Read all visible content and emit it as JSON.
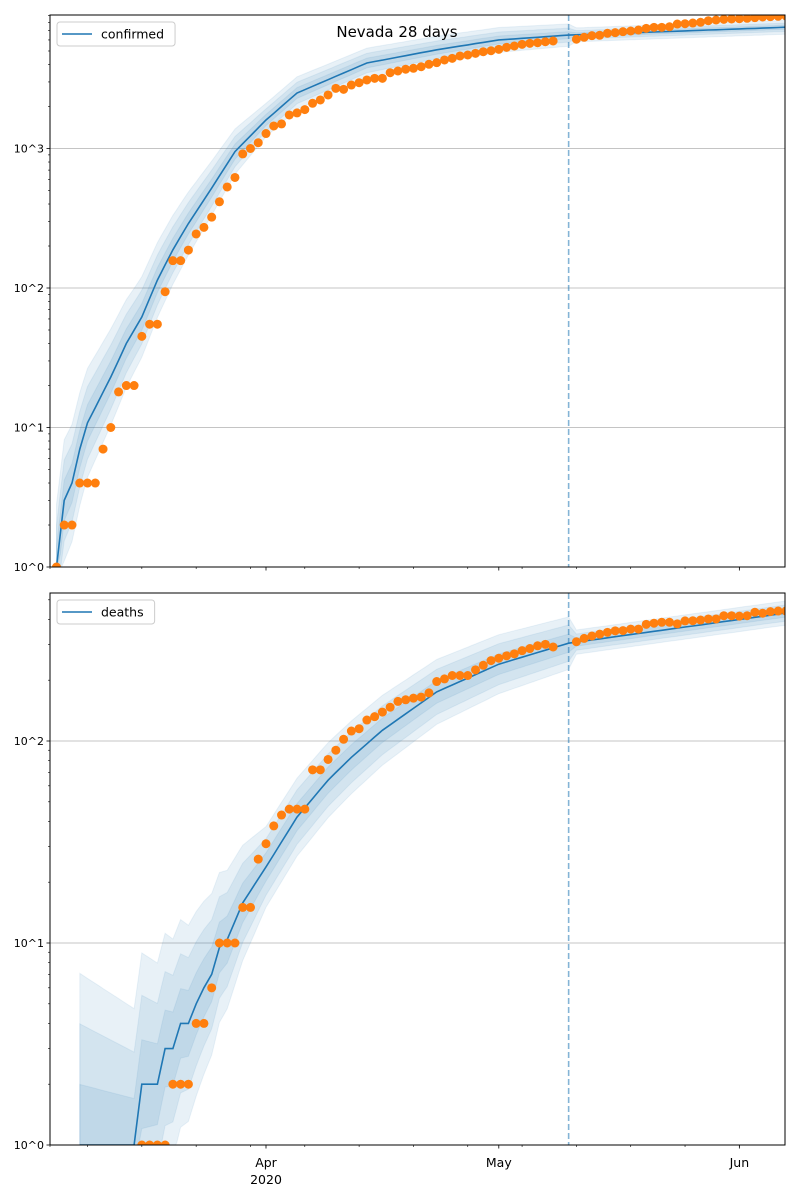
{
  "chart_data": [
    {
      "type": "line",
      "panel": "top",
      "title": "Nevada 28 days",
      "yscale": "log",
      "ylim": [
        1,
        9100
      ],
      "xlim": [
        "2020-03-04",
        "2020-06-07"
      ],
      "y_ticks": [
        "10^0",
        "10^1",
        "10^2",
        "10^3"
      ],
      "x_ticks": [
        {
          "date": "2020-04-01",
          "label": "Apr",
          "sublabel": "2020"
        },
        {
          "date": "2020-05-01",
          "label": "May"
        },
        {
          "date": "2020-06-01",
          "label": "Jun"
        }
      ],
      "show_x_labels": false,
      "grid": "y-major",
      "legend": {
        "placement": "top-left",
        "entries": [
          "confirmed"
        ]
      },
      "forecast_split_date": "2020-05-10",
      "observed": {
        "start": "2020-03-05",
        "values": [
          1,
          2,
          2,
          4,
          4,
          4,
          7,
          10,
          18,
          20,
          20,
          45,
          55,
          55,
          94,
          157,
          157,
          187,
          244,
          272,
          322,
          415,
          530,
          620,
          915,
          1000,
          1100,
          1280,
          1450,
          1500,
          1740,
          1800,
          1900,
          2110,
          2228,
          2420,
          2700,
          2656,
          2850,
          2963,
          3100,
          3185,
          3185,
          3494,
          3594,
          3700,
          3758,
          3857,
          4015,
          4124,
          4310,
          4431,
          4605,
          4680,
          4810,
          4940,
          5020,
          5140,
          5310,
          5430,
          5580,
          5675,
          5730,
          5830,
          5900,
          null,
          null,
          6070,
          6270,
          6440,
          6480,
          6700,
          6765,
          6880,
          6955,
          7070,
          7270,
          7390,
          7390,
          7460,
          7800,
          7840,
          7935,
          8030,
          8240,
          8340,
          8430,
          8480,
          8520,
          8580,
          8670,
          8770,
          8810,
          8870,
          8910
        ]
      },
      "model": [
        [
          "2020-03-05",
          1
        ],
        [
          "2020-03-06",
          3
        ],
        [
          "2020-03-07",
          4
        ],
        [
          "2020-03-08",
          7
        ],
        [
          "2020-03-09",
          10.8
        ],
        [
          "2020-03-12",
          23
        ],
        [
          "2020-03-14",
          40
        ],
        [
          "2020-03-16",
          62
        ],
        [
          "2020-03-18",
          114
        ],
        [
          "2020-03-20",
          188
        ],
        [
          "2020-03-22",
          290
        ],
        [
          "2020-03-25",
          520
        ],
        [
          "2020-03-28",
          950
        ],
        [
          "2020-04-01",
          1600
        ],
        [
          "2020-04-05",
          2500
        ],
        [
          "2020-04-14",
          4100
        ],
        [
          "2020-04-23",
          5100
        ],
        [
          "2020-05-01",
          6000
        ],
        [
          "2020-05-10",
          6500
        ],
        [
          "2020-06-07",
          7400
        ]
      ],
      "uncertainty_halfwidth_decades": {
        "dates": [
          "2020-03-05",
          "2020-03-15",
          "2020-04-01",
          "2020-05-10",
          "2020-05-11",
          "2020-06-07"
        ],
        "levels": [
          [
            0.45,
            0.3,
            0.15
          ],
          [
            0.3,
            0.2,
            0.1
          ],
          [
            0.12,
            0.08,
            0.04
          ],
          [
            0.08,
            0.05,
            0.025
          ],
          [
            0.05,
            0.03,
            0.015
          ],
          [
            0.05,
            0.03,
            0.015
          ]
        ]
      }
    },
    {
      "type": "line",
      "panel": "bottom",
      "yscale": "log",
      "ylim": [
        1,
        541
      ],
      "xlim": [
        "2020-03-04",
        "2020-06-07"
      ],
      "y_ticks": [
        "10^0",
        "10^1",
        "10^2"
      ],
      "x_ticks": [
        {
          "date": "2020-04-01",
          "label": "Apr",
          "sublabel": "2020"
        },
        {
          "date": "2020-05-01",
          "label": "May"
        },
        {
          "date": "2020-06-01",
          "label": "Jun"
        }
      ],
      "show_x_labels": true,
      "grid": "y-major",
      "legend": {
        "placement": "top-left",
        "entries": [
          "deaths"
        ]
      },
      "forecast_split_date": "2020-05-10",
      "observed": {
        "start": "2020-03-16",
        "values": [
          1,
          1,
          1,
          1,
          2,
          2,
          2,
          4,
          4,
          6,
          10,
          10,
          10,
          15,
          15,
          26,
          31,
          38,
          43,
          46,
          46,
          46,
          72,
          72,
          81,
          90,
          102,
          112,
          115,
          127,
          132,
          139,
          147,
          157,
          160,
          163,
          165,
          173,
          197,
          203,
          211,
          211,
          211,
          225,
          237,
          250,
          257,
          264,
          270,
          280,
          287,
          296,
          301,
          292,
          null,
          null,
          310,
          322,
          331,
          338,
          345,
          351,
          352,
          358,
          358,
          378,
          383,
          387,
          387,
          380,
          393,
          394,
          397,
          402,
          402,
          417,
          417,
          415,
          417,
          434,
          429,
          437,
          440,
          440
        ]
      },
      "model": [
        [
          "2020-03-08",
          1
        ],
        [
          "2020-03-15",
          1
        ],
        [
          "2020-03-16",
          2
        ],
        [
          "2020-03-18",
          2
        ],
        [
          "2020-03-19",
          3
        ],
        [
          "2020-03-20",
          3
        ],
        [
          "2020-03-21",
          4
        ],
        [
          "2020-03-22",
          4
        ],
        [
          "2020-03-23",
          5
        ],
        [
          "2020-03-24",
          6
        ],
        [
          "2020-03-25",
          7
        ],
        [
          "2020-03-26",
          9.5
        ],
        [
          "2020-03-27",
          10.4
        ],
        [
          "2020-03-29",
          15.8
        ],
        [
          "2020-04-01",
          23.8
        ],
        [
          "2020-04-05",
          42
        ],
        [
          "2020-04-09",
          64
        ],
        [
          "2020-04-12",
          83
        ],
        [
          "2020-04-16",
          113
        ],
        [
          "2020-04-23",
          175
        ],
        [
          "2020-05-01",
          240
        ],
        [
          "2020-05-10",
          305
        ],
        [
          "2020-06-07",
          430
        ]
      ],
      "uncertainty_halfwidth_decades": {
        "dates": [
          "2020-03-08",
          "2020-03-18",
          "2020-04-01",
          "2020-05-10",
          "2020-05-11",
          "2020-06-07"
        ],
        "levels": [
          [
            0.85,
            0.6,
            0.3
          ],
          [
            0.6,
            0.4,
            0.2
          ],
          [
            0.2,
            0.14,
            0.07
          ],
          [
            0.13,
            0.09,
            0.045
          ],
          [
            0.06,
            0.04,
            0.02
          ],
          [
            0.06,
            0.04,
            0.02
          ]
        ]
      }
    }
  ],
  "colors": {
    "model": "#1f77b4",
    "observed": "#ff7f0e",
    "grid": "#b0b0b0"
  }
}
